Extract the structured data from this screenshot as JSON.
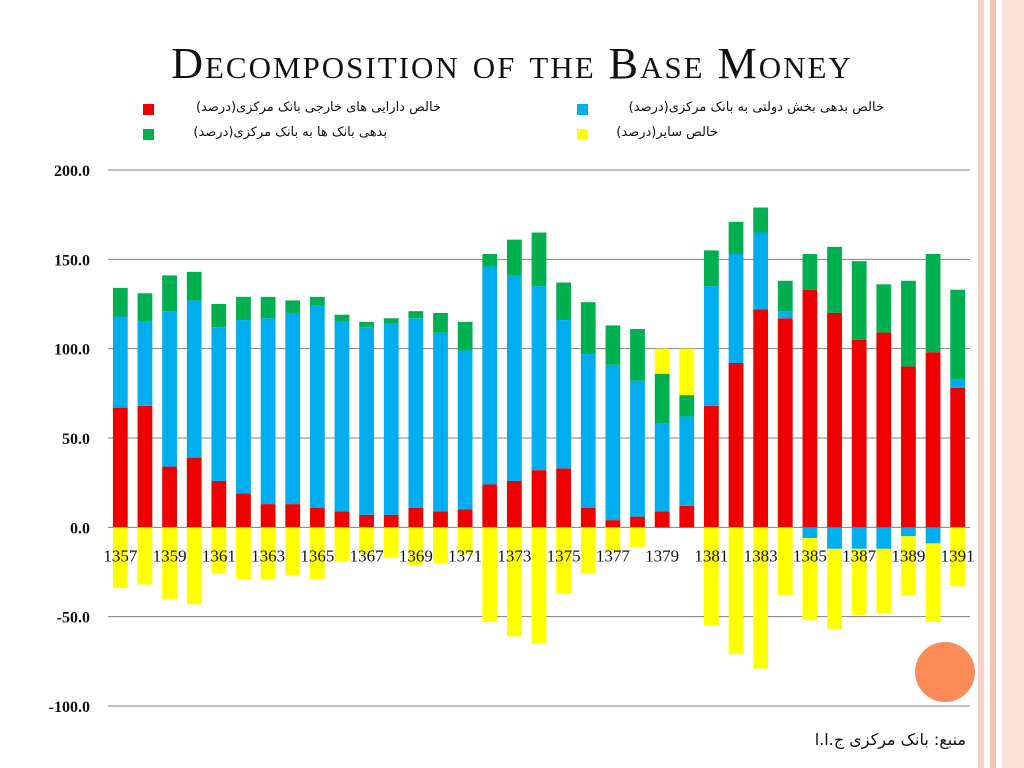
{
  "slide": {
    "title": "Decomposition of the Base Money",
    "source": "منبع: بانک مرکزی ج.ا.ا"
  },
  "colors": {
    "red": "#ee0000",
    "blue": "#00aeef",
    "green": "#00b050",
    "yellow": "#ffff00",
    "accent": "#fb8c5a",
    "stripe": "#f5c4b4"
  },
  "legend": [
    {
      "label": "خالص دارایی های خارجی بانک مرکزی(درصد)",
      "color": "#ee0000"
    },
    {
      "label": "خالص بدهی بخش دولتی به بانک مرکزی(درصد)",
      "color": "#00aeef"
    },
    {
      "label": "بدهی بانک ها به بانک مرکزی(درصد)",
      "color": "#00b050"
    },
    {
      "label": "خالص سایر(درصد)",
      "color": "#ffff00"
    }
  ],
  "chart_data": {
    "type": "bar",
    "stacked": true,
    "title": "Decomposition of the Base Money",
    "categories": [
      "1357",
      "1358",
      "1359",
      "1360",
      "1361",
      "1362",
      "1363",
      "1364",
      "1365",
      "1366",
      "1367",
      "1368",
      "1369",
      "1370",
      "1371",
      "1372",
      "1373",
      "1374",
      "1375",
      "1376",
      "1377",
      "1378",
      "1379",
      "1380",
      "1381",
      "1382",
      "1383",
      "1384",
      "1385",
      "1386",
      "1387",
      "1388",
      "1389",
      "1390",
      "1391"
    ],
    "x_tick_labels": [
      "1357",
      "1359",
      "1361",
      "1363",
      "1365",
      "1367",
      "1369",
      "1371",
      "1373",
      "1375",
      "1377",
      "1379",
      "1381",
      "1383",
      "1385",
      "1387",
      "1389",
      "1391"
    ],
    "ylim": [
      -100,
      200
    ],
    "y_ticks": [
      "200.0",
      "150.0",
      "100.0",
      "50.0",
      "0.0",
      "-50.0",
      "-100.0"
    ],
    "y_tick_values": [
      200,
      150,
      100,
      50,
      0,
      -50,
      -100
    ],
    "grid": true,
    "legend_position": "top",
    "series": [
      {
        "name": "خالص دارایی های خارجی بانک مرکزی(درصد)",
        "color": "#ee0000",
        "values": [
          67,
          68,
          34,
          39,
          26,
          19,
          13,
          13,
          11,
          9,
          7,
          7,
          11,
          9,
          10,
          24,
          26,
          32,
          33,
          11,
          4,
          6,
          9,
          12,
          68,
          92,
          122,
          117,
          133,
          120,
          105,
          109,
          90,
          98,
          78
        ]
      },
      {
        "name": "خالص بدهی بخش دولتی به بانک مرکزی(درصد)",
        "color": "#00aeef",
        "values": [
          51,
          47,
          87,
          88,
          86,
          97,
          104,
          107,
          113,
          106,
          105,
          107,
          106,
          100,
          89,
          122,
          115,
          103,
          83,
          86,
          87,
          76,
          49,
          50,
          67,
          61,
          43,
          4,
          -6,
          -12,
          -12,
          -12,
          -5,
          -9,
          5
        ]
      },
      {
        "name": "بدهی بانک ها به بانک مرکزی(درصد)",
        "color": "#00b050",
        "values": [
          16,
          16,
          20,
          16,
          13,
          13,
          12,
          7,
          5,
          4,
          3,
          3,
          4,
          11,
          16,
          7,
          20,
          30,
          21,
          29,
          22,
          29,
          28,
          12,
          20,
          18,
          14,
          17,
          20,
          37,
          44,
          27,
          48,
          55,
          50
        ]
      },
      {
        "name": "خالص سایر(درصد)",
        "color": "#ffff00",
        "values": [
          -34,
          -32,
          -40,
          -43,
          -26,
          -29,
          -29,
          -27,
          -29,
          -19,
          -15,
          -17,
          -21,
          -20,
          -15,
          -53,
          -61,
          -65,
          -37,
          -26,
          -13,
          -11,
          14,
          26,
          -55,
          -71,
          -79,
          -38,
          -46,
          -45,
          -37,
          -36,
          -33,
          -44,
          -33
        ]
      }
    ]
  }
}
